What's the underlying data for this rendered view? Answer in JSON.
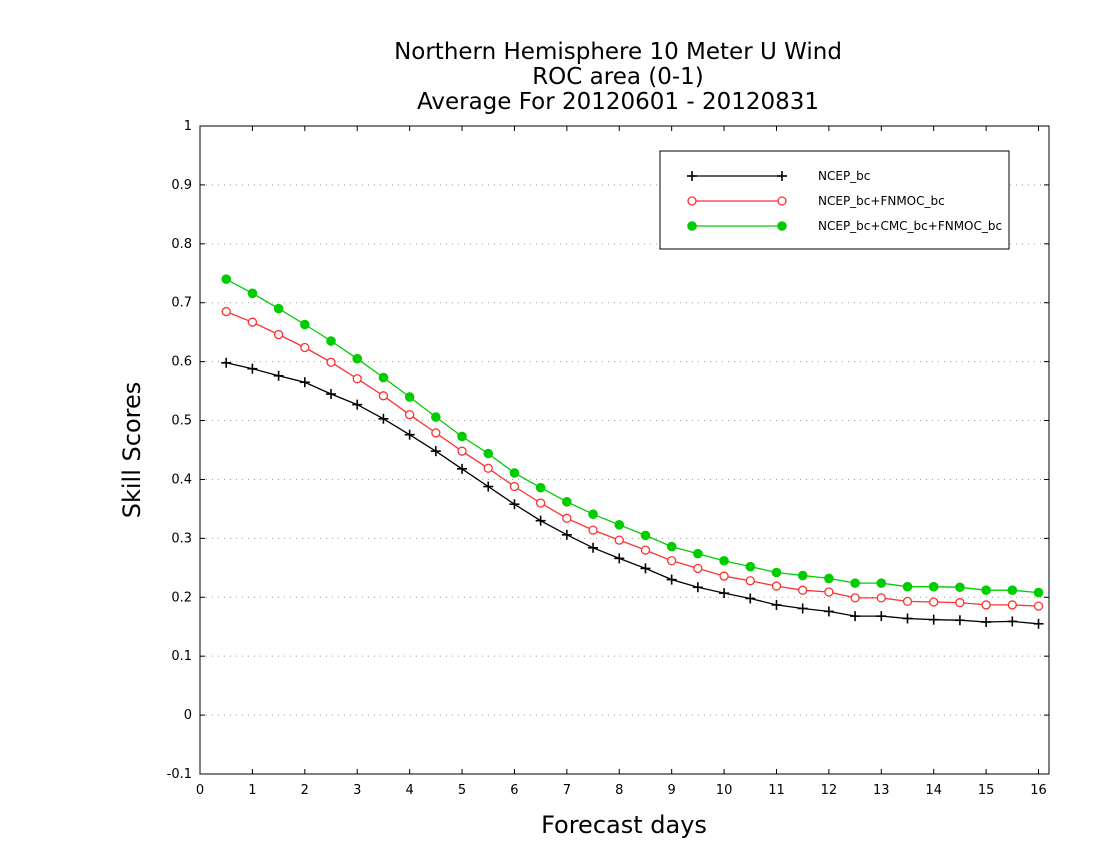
{
  "chart_data": {
    "type": "line",
    "title_lines": [
      "Northern Hemisphere 10 Meter U Wind",
      "ROC area (0-1)",
      "Average For 20120601 - 20120831"
    ],
    "xlabel": "Forecast days",
    "ylabel": "Skill Scores",
    "xlim": [
      0,
      16.2
    ],
    "ylim": [
      -0.1,
      1
    ],
    "x_ticks": [
      "0",
      "1",
      "2",
      "3",
      "4",
      "5",
      "6",
      "7",
      "8",
      "9",
      "10",
      "11",
      "12",
      "13",
      "14",
      "15",
      "16"
    ],
    "y_ticks": [
      "-0.1",
      "0",
      "0.1",
      "0.2",
      "0.3",
      "0.4",
      "0.5",
      "0.6",
      "0.7",
      "0.8",
      "0.9",
      "1"
    ],
    "grid": true,
    "legend_position": "top-right",
    "x": [
      0.5,
      1,
      1.5,
      2,
      2.5,
      3,
      3.5,
      4,
      4.5,
      5,
      5.5,
      6,
      6.5,
      7,
      7.5,
      8,
      8.5,
      9,
      9.5,
      10,
      10.5,
      11,
      11.5,
      12,
      12.5,
      13,
      13.5,
      14,
      14.5,
      15,
      15.5,
      16
    ],
    "series": [
      {
        "name": "NCEP_bc",
        "color": "#000000",
        "marker": "plus",
        "values": [
          0.598,
          0.588,
          0.576,
          0.565,
          0.545,
          0.527,
          0.503,
          0.476,
          0.448,
          0.418,
          0.388,
          0.358,
          0.33,
          0.306,
          0.284,
          0.266,
          0.249,
          0.23,
          0.217,
          0.207,
          0.198,
          0.187,
          0.181,
          0.176,
          0.168,
          0.168,
          0.164,
          0.162,
          0.161,
          0.158,
          0.159,
          0.155
        ]
      },
      {
        "name": "NCEP_bc+FNMOC_bc",
        "color": "#ff3030",
        "marker": "open-circle",
        "values": [
          0.685,
          0.667,
          0.646,
          0.624,
          0.599,
          0.571,
          0.542,
          0.51,
          0.479,
          0.448,
          0.419,
          0.388,
          0.36,
          0.334,
          0.314,
          0.297,
          0.28,
          0.262,
          0.249,
          0.236,
          0.228,
          0.219,
          0.212,
          0.209,
          0.199,
          0.199,
          0.193,
          0.192,
          0.191,
          0.187,
          0.187,
          0.185
        ]
      },
      {
        "name": "NCEP_bc+CMC_bc+FNMOC_bc",
        "color": "#00cc00",
        "marker": "filled-circle",
        "values": [
          0.74,
          0.716,
          0.69,
          0.663,
          0.635,
          0.605,
          0.573,
          0.54,
          0.506,
          0.473,
          0.444,
          0.411,
          0.386,
          0.362,
          0.341,
          0.323,
          0.305,
          0.286,
          0.274,
          0.262,
          0.252,
          0.242,
          0.237,
          0.232,
          0.224,
          0.224,
          0.218,
          0.218,
          0.217,
          0.212,
          0.212,
          0.208
        ]
      }
    ]
  }
}
